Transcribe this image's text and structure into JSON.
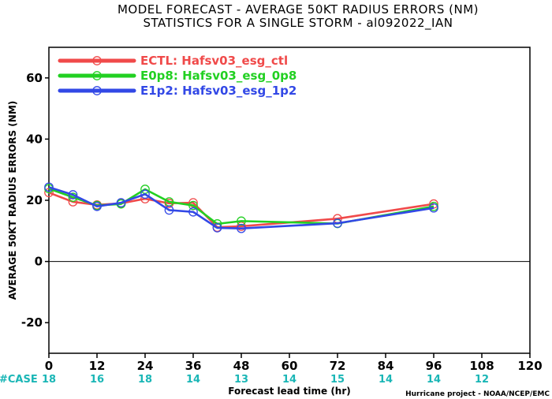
{
  "chart_data": {
    "type": "line",
    "title": "MODEL FORECAST - AVERAGE 50KT RADIUS ERRORS (NM)",
    "subtitle": "STATISTICS FOR A SINGLE STORM - al092022_IAN",
    "xlabel": "Forecast lead time (hr)",
    "ylabel": "AVERAGE 50KT RADIUS ERRORS (NM)",
    "xlim": [
      0,
      120
    ],
    "ylim": [
      -30,
      70
    ],
    "xticks": [
      "0",
      "12",
      "24",
      "36",
      "48",
      "60",
      "72",
      "84",
      "96",
      "108",
      "120"
    ],
    "yticks": [
      "-20",
      "0",
      "20",
      "40",
      "60"
    ],
    "zero_line": true,
    "grid": false,
    "legend_position": "top-left",
    "case_label": "#CASE",
    "case_color": "#1ab6b6",
    "cases": [
      {
        "x": 0,
        "label": "18"
      },
      {
        "x": 12,
        "label": "16"
      },
      {
        "x": 24,
        "label": "18"
      },
      {
        "x": 36,
        "label": "14"
      },
      {
        "x": 48,
        "label": "13"
      },
      {
        "x": 60,
        "label": "14"
      },
      {
        "x": 72,
        "label": "15"
      },
      {
        "x": 84,
        "label": "14"
      },
      {
        "x": 96,
        "label": "14"
      },
      {
        "x": 108,
        "label": "12"
      }
    ],
    "series": [
      {
        "name": "ECTL: Hafsv03_esg_ctl",
        "color": "#f04a4a",
        "x": [
          0,
          6,
          12,
          18,
          24,
          30,
          36,
          42,
          48,
          72,
          96
        ],
        "y": [
          22.5,
          19.5,
          18.5,
          19,
          20.5,
          19,
          19.2,
          11.2,
          11.5,
          14,
          18.8
        ]
      },
      {
        "name": "E0p8: Hafsv03_esg_0p8",
        "color": "#22d022",
        "x": [
          0,
          6,
          12,
          18,
          24,
          30,
          36,
          42,
          48,
          72,
          96
        ],
        "y": [
          23.8,
          21,
          18.3,
          18.8,
          23.6,
          19.5,
          18.3,
          12.3,
          13.2,
          12.4,
          18
        ]
      },
      {
        "name": "E1p2: Hafsv03_esg_1p2",
        "color": "#3248e6",
        "x": [
          0,
          6,
          12,
          18,
          24,
          30,
          36,
          42,
          48,
          72,
          96
        ],
        "y": [
          24.3,
          21.8,
          18,
          19.2,
          22,
          16.8,
          16.2,
          11,
          10.8,
          12.5,
          17.5
        ]
      }
    ]
  },
  "credit": "Hurricane project - NOAA/NCEP/EMC"
}
